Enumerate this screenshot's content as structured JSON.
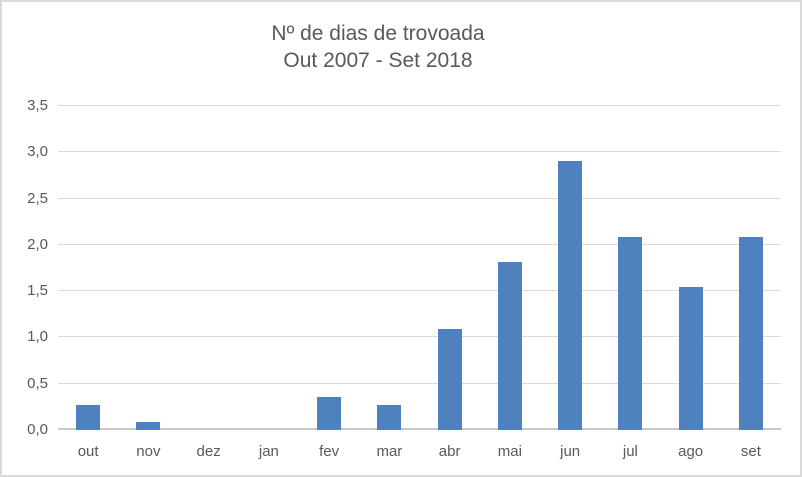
{
  "window": {
    "background_color": "#FFFFFF",
    "border_color": "#D9D9D9"
  },
  "chart_data": {
    "type": "bar",
    "title": "Nº de dias de trovoada",
    "subtitle": "Out 2007 - Set 2018",
    "categories": [
      "out",
      "nov",
      "dez",
      "jan",
      "fev",
      "mar",
      "abr",
      "mai",
      "jun",
      "jul",
      "ago",
      "set"
    ],
    "values": [
      0.27,
      0.09,
      0,
      0,
      0.36,
      0.27,
      1.09,
      1.82,
      2.91,
      2.09,
      1.55,
      2.09
    ],
    "xlabel": "",
    "ylabel": "",
    "ylim": [
      0,
      3.5
    ],
    "y_ticks": [
      0,
      0.5,
      1,
      1.5,
      2,
      2.5,
      3,
      3.5
    ],
    "y_tick_labels": [
      "0,0",
      "0,5",
      "1,0",
      "1,5",
      "2,0",
      "2,5",
      "3,0",
      "3,5"
    ],
    "grid": true,
    "legend": false,
    "legend_position": "none",
    "bar_color": "#4E81BD",
    "gridline_color": "#DBDBDB",
    "axis_line_color": "#C9C9C9",
    "text_color": "#595959"
  }
}
